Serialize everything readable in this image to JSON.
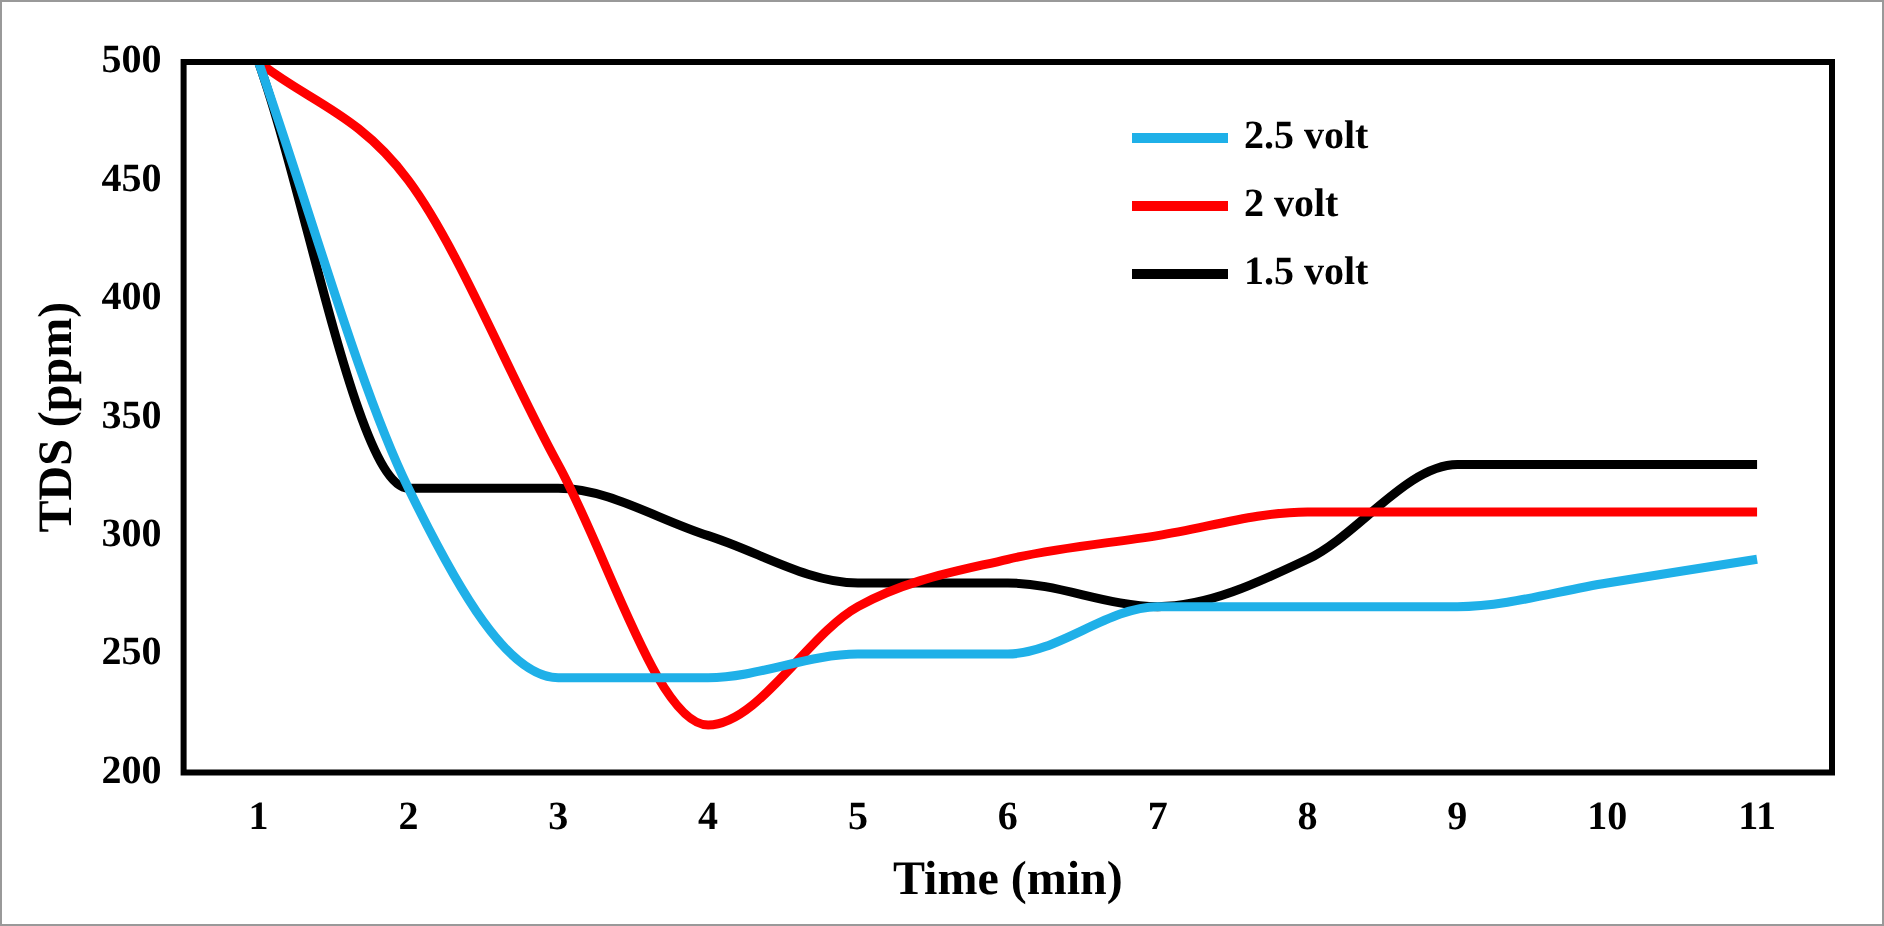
{
  "chart_data": {
    "type": "line",
    "xlabel": "Time (min)",
    "ylabel": "TDS (ppm)",
    "categories": [
      "1",
      "2",
      "3",
      "4",
      "5",
      "6",
      "7",
      "8",
      "9",
      "10",
      "11"
    ],
    "series": [
      {
        "name": "2.5 volt",
        "color": "#1fb0e8",
        "values": [
          500,
          320,
          240,
          240,
          250,
          250,
          270,
          270,
          270,
          280,
          290
        ]
      },
      {
        "name": "2 volt",
        "color": "#ff0000",
        "values": [
          500,
          450,
          330,
          220,
          270,
          290,
          300,
          310,
          310,
          310,
          310
        ]
      },
      {
        "name": "1.5 volt",
        "color": "#000000",
        "values": [
          500,
          320,
          320,
          300,
          280,
          280,
          270,
          290,
          330,
          330,
          330
        ]
      }
    ],
    "ylim": [
      200,
      500
    ],
    "yticks": [
      200,
      250,
      300,
      350,
      400,
      450,
      500
    ],
    "grid": false,
    "legend": "top right",
    "marker": "none",
    "line_style": "solid"
  }
}
